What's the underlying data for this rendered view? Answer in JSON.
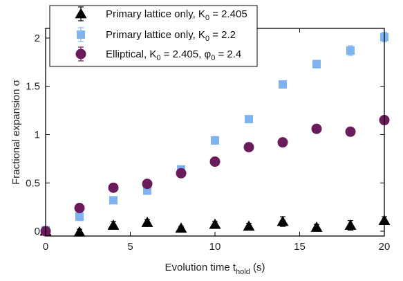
{
  "chart_data": {
    "type": "scatter",
    "xlabel": {
      "main": "Evolution time t",
      "sub": "hold",
      "unit": " (s)"
    },
    "ylabel": "Fractional expansion σ",
    "xlim": [
      0,
      20
    ],
    "ylim": [
      -0.05,
      2.1
    ],
    "xticks": [
      0,
      5,
      10,
      15,
      20
    ],
    "yticks": [
      0,
      0.5,
      1,
      1.5,
      2
    ],
    "xtick_labels": [
      "0",
      "5",
      "10",
      "15",
      "20"
    ],
    "ytick_labels": [
      "0",
      "0.5",
      "1",
      "1.5",
      "2"
    ],
    "grid": false,
    "legend_position": "top-left",
    "series": [
      {
        "name": "Primary lattice only, K0 = 2.405",
        "legend": {
          "pre": "Primary lattice only, K",
          "sub": "0",
          "post": " = 2.405"
        },
        "marker": "triangle",
        "color": "#000000",
        "x": [
          0,
          2,
          4,
          6,
          8,
          10,
          12,
          14,
          16,
          18,
          20
        ],
        "y": [
          0.0,
          -0.01,
          0.06,
          0.09,
          0.03,
          0.07,
          0.05,
          0.1,
          0.04,
          0.06,
          0.11
        ],
        "err": [
          0.02,
          0.03,
          0.04,
          0.03,
          0.02,
          0.03,
          0.03,
          0.05,
          0.03,
          0.05,
          0.04
        ]
      },
      {
        "name": "Primary lattice only, K0 = 2.2",
        "legend": {
          "pre": "Primary lattice only, K",
          "sub": "0",
          "post": " = 2.2"
        },
        "marker": "square",
        "color": "#7fb2f0",
        "x": [
          0,
          2,
          4,
          6,
          8,
          10,
          12,
          14,
          16,
          18,
          20
        ],
        "y": [
          0.01,
          0.15,
          0.32,
          0.42,
          0.64,
          0.94,
          1.16,
          1.52,
          1.73,
          1.87,
          2.01
        ],
        "err": [
          0.02,
          0.04,
          0.03,
          0.04,
          0.03,
          0.04,
          0.03,
          0.03,
          0.04,
          0.05,
          0.05
        ]
      },
      {
        "name": "Elliptical, K0 = 2.405, φ0 = 2.4",
        "legend": {
          "pre": "Elliptical, K",
          "sub": "0",
          "mid": " = 2.405, φ",
          "sub2": "0",
          "post": " = 2.4"
        },
        "marker": "circle",
        "color": "#6a1b5c",
        "x": [
          0,
          2,
          4,
          6,
          8,
          10,
          12,
          14,
          16,
          18,
          20
        ],
        "y": [
          0.0,
          0.24,
          0.45,
          0.49,
          0.6,
          0.72,
          0.87,
          0.92,
          1.06,
          1.03,
          1.15
        ],
        "err": [
          0.02,
          0.03,
          0.03,
          0.03,
          0.03,
          0.03,
          0.03,
          0.03,
          0.04,
          0.04,
          0.03
        ]
      }
    ]
  }
}
